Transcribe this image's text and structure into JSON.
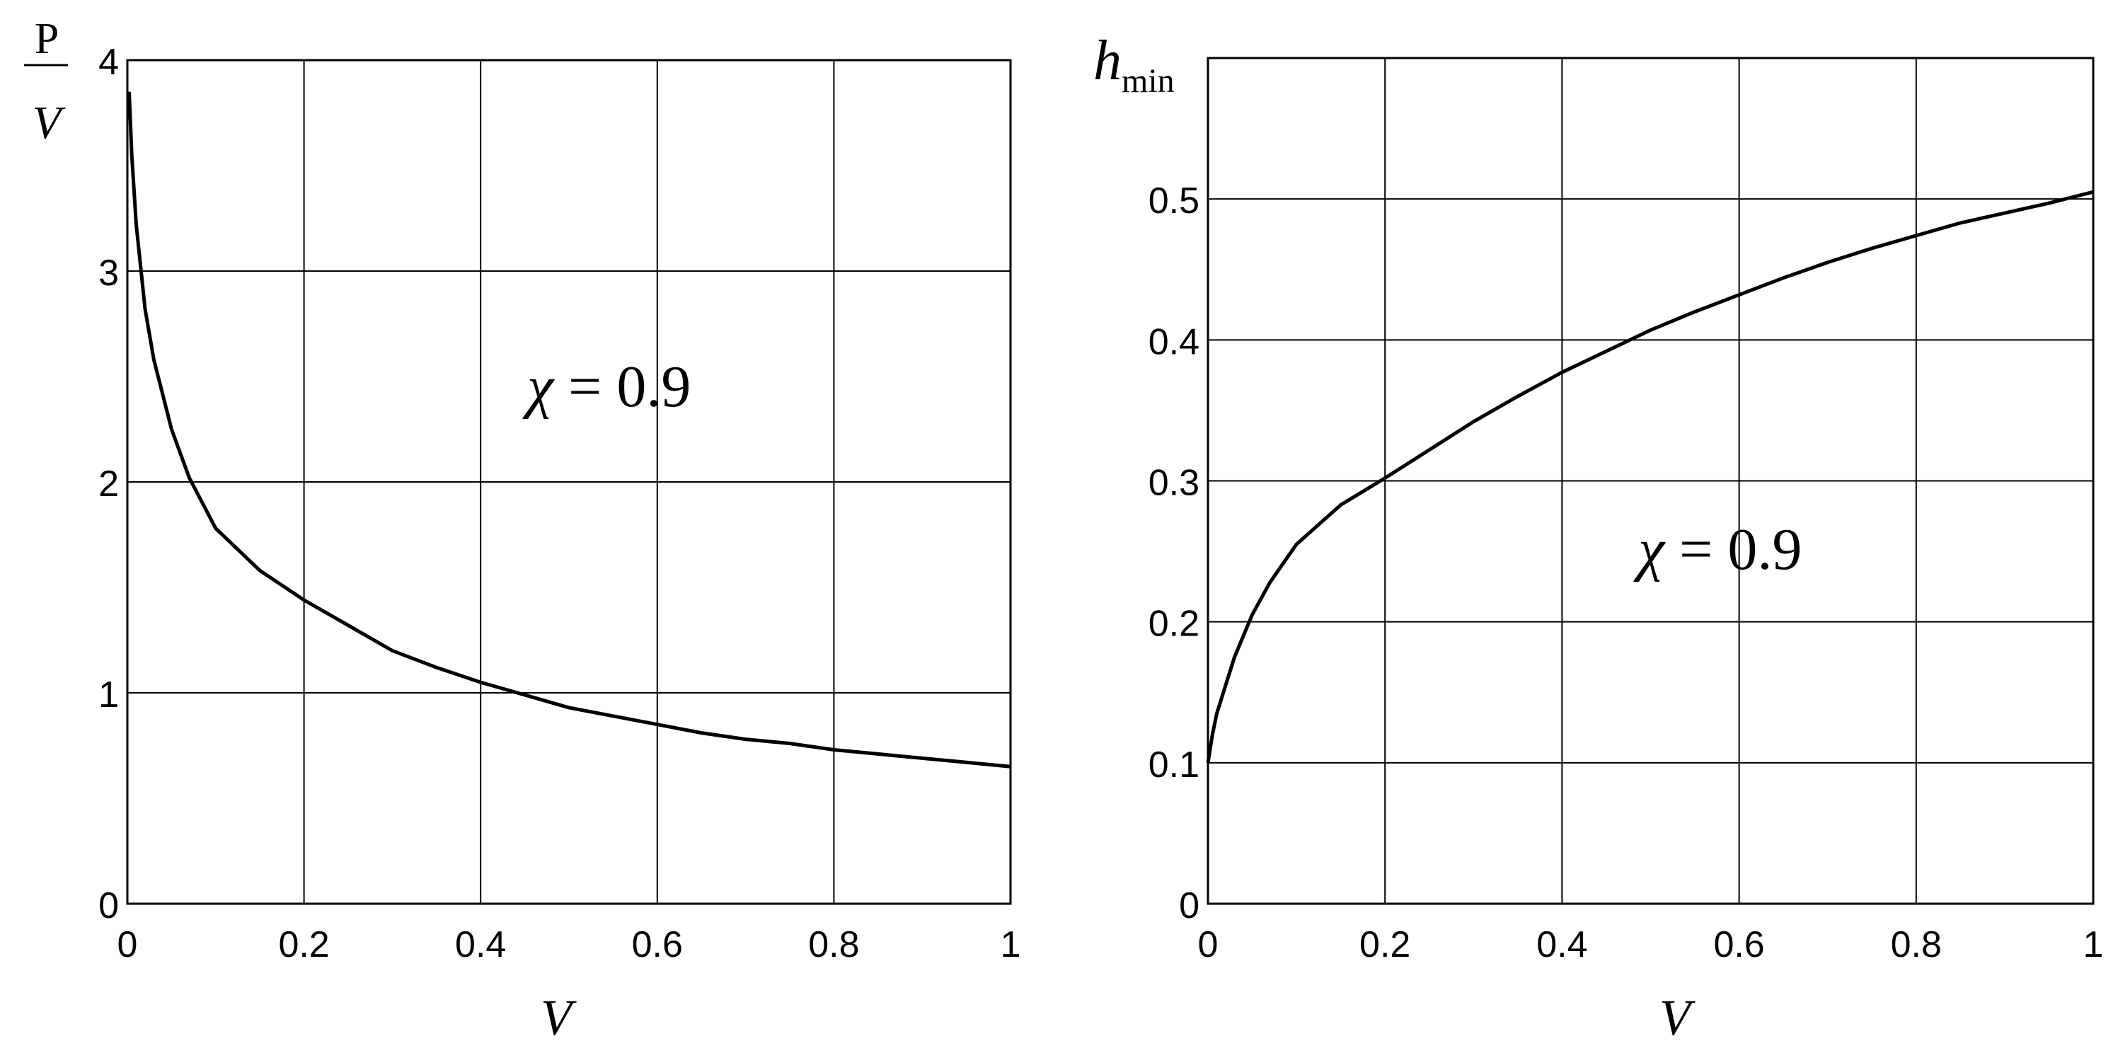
{
  "chart_data": [
    {
      "type": "line",
      "ylabel": {
        "numerator": "P",
        "denominator": "V"
      },
      "xlabel": "V",
      "xlim": [
        0,
        1
      ],
      "ylim": [
        0,
        4
      ],
      "x_ticks": [
        "0",
        "0.2",
        "0.4",
        "0.6",
        "0.8",
        "1"
      ],
      "y_ticks": [
        "0",
        "1",
        "2",
        "3",
        "4"
      ],
      "grid": true,
      "annotation": {
        "symbol": "χ",
        "text": " = 0.9"
      },
      "series": [
        {
          "x": [
            0.002,
            0.005,
            0.01,
            0.02,
            0.03,
            0.05,
            0.07,
            0.1,
            0.15,
            0.2,
            0.25,
            0.3,
            0.35,
            0.4,
            0.45,
            0.5,
            0.55,
            0.6,
            0.65,
            0.7,
            0.75,
            0.8,
            0.85,
            0.9,
            0.95,
            1.0
          ],
          "y": [
            3.85,
            3.55,
            3.22,
            2.82,
            2.58,
            2.25,
            2.02,
            1.78,
            1.58,
            1.44,
            1.32,
            1.2,
            1.12,
            1.05,
            0.99,
            0.93,
            0.89,
            0.85,
            0.81,
            0.78,
            0.76,
            0.73,
            0.71,
            0.69,
            0.67,
            0.65
          ]
        }
      ]
    },
    {
      "type": "line",
      "ylabel": {
        "main": "h",
        "sub": "min"
      },
      "xlabel": "V",
      "xlim": [
        0,
        1
      ],
      "ylim": [
        0,
        0.6
      ],
      "x_ticks": [
        "0",
        "0.2",
        "0.4",
        "0.6",
        "0.8",
        "1"
      ],
      "y_ticks": [
        "0",
        "0.1",
        "0.2",
        "0.3",
        "0.4",
        "0.5"
      ],
      "grid": true,
      "annotation": {
        "symbol": "χ",
        "text": " = 0.9"
      },
      "series": [
        {
          "x": [
            0.0,
            0.005,
            0.01,
            0.02,
            0.03,
            0.05,
            0.07,
            0.1,
            0.15,
            0.2,
            0.25,
            0.3,
            0.35,
            0.4,
            0.45,
            0.5,
            0.55,
            0.6,
            0.65,
            0.7,
            0.75,
            0.8,
            0.85,
            0.9,
            0.95,
            1.0
          ],
          "y": [
            0.1,
            0.12,
            0.135,
            0.155,
            0.175,
            0.205,
            0.228,
            0.255,
            0.283,
            0.302,
            0.322,
            0.342,
            0.36,
            0.377,
            0.392,
            0.407,
            0.42,
            0.432,
            0.444,
            0.455,
            0.465,
            0.474,
            0.483,
            0.49,
            0.497,
            0.505
          ]
        }
      ]
    }
  ]
}
